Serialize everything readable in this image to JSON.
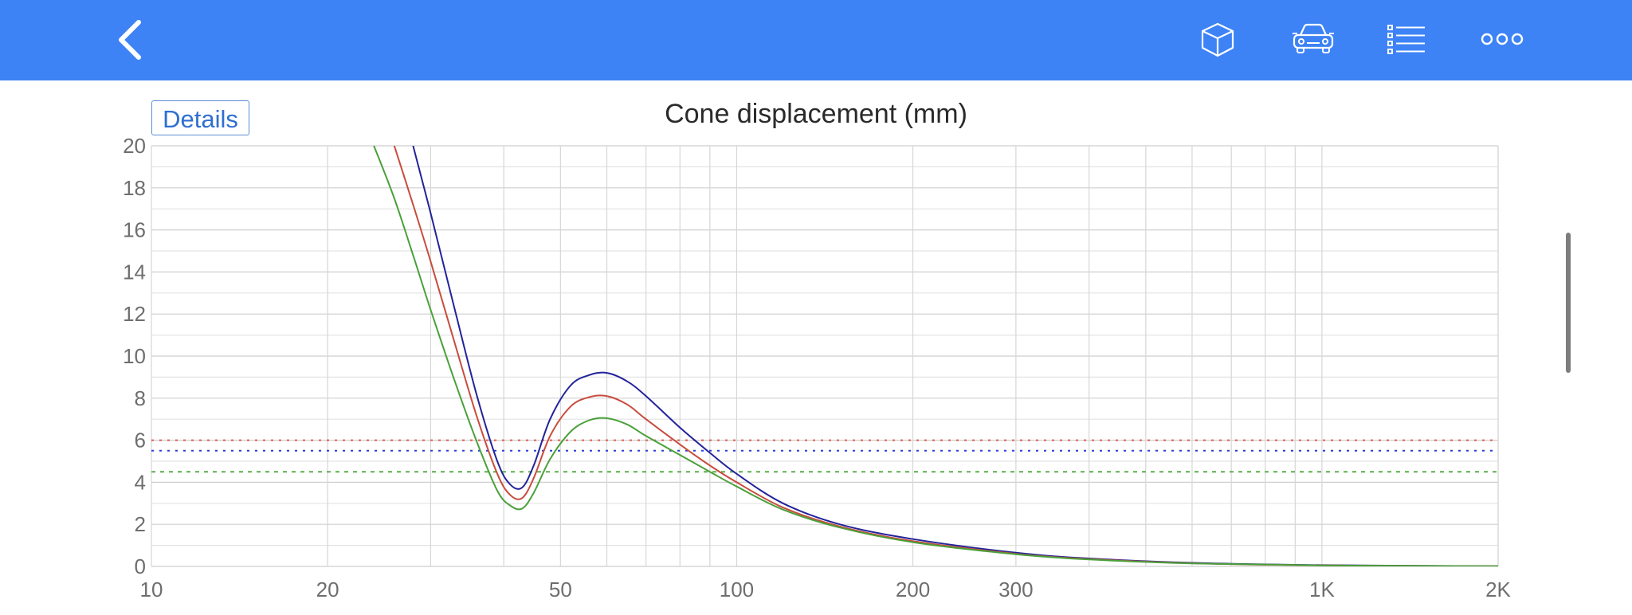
{
  "header": {
    "back_icon": "chevron-left-icon",
    "actions": [
      {
        "icon": "cube-icon"
      },
      {
        "icon": "car-icon"
      },
      {
        "icon": "list-icon"
      },
      {
        "icon": "more-icon"
      }
    ],
    "color": "#3d83f5"
  },
  "details_label": "Details",
  "chart_data": {
    "type": "line",
    "title": "Cone displacement (mm)",
    "xscale": "log",
    "xlim": [
      10,
      2000
    ],
    "ylim": [
      0,
      20
    ],
    "x_ticks": [
      {
        "value": 10,
        "label": "10"
      },
      {
        "value": 20,
        "label": "20"
      },
      {
        "value": 50,
        "label": "50"
      },
      {
        "value": 100,
        "label": "100"
      },
      {
        "value": 200,
        "label": "200"
      },
      {
        "value": 300,
        "label": "300"
      },
      {
        "value": 1000,
        "label": "1K"
      },
      {
        "value": 2000,
        "label": "2K"
      }
    ],
    "y_ticks": [
      0,
      2,
      4,
      6,
      8,
      10,
      12,
      14,
      16,
      18,
      20
    ],
    "grid": true,
    "series": [
      {
        "color": "#23239b",
        "x": [
          28,
          30,
          33,
          36,
          39,
          41,
          43,
          45,
          48,
          52,
          56,
          60,
          65,
          70,
          80,
          90,
          100,
          120,
          150,
          200,
          300,
          400,
          600,
          1000,
          2000
        ],
        "y": [
          20.0,
          16.8,
          12.2,
          8.1,
          5.0,
          3.9,
          3.75,
          4.8,
          7.0,
          8.6,
          9.1,
          9.2,
          8.8,
          8.1,
          6.6,
          5.4,
          4.4,
          3.0,
          2.0,
          1.3,
          0.65,
          0.38,
          0.17,
          0.06,
          0.01
        ]
      },
      {
        "color": "#c84c3d",
        "x": [
          26,
          28,
          30,
          33,
          36,
          39,
          41,
          43,
          45,
          48,
          52,
          56,
          60,
          65,
          70,
          80,
          90,
          100,
          120,
          150,
          200,
          300,
          400,
          600,
          1000,
          2000
        ],
        "y": [
          20.0,
          17.2,
          14.5,
          10.6,
          7.1,
          4.4,
          3.4,
          3.25,
          4.2,
          6.2,
          7.6,
          8.05,
          8.1,
          7.7,
          7.0,
          5.8,
          4.8,
          4.0,
          2.8,
          1.9,
          1.2,
          0.6,
          0.35,
          0.15,
          0.05,
          0.01
        ]
      },
      {
        "color": "#4aa03a",
        "x": [
          24,
          26,
          28,
          30,
          33,
          36,
          39,
          41,
          43,
          45,
          48,
          52,
          56,
          60,
          65,
          70,
          80,
          90,
          100,
          120,
          150,
          200,
          300,
          400,
          600,
          1000,
          2000
        ],
        "y": [
          20.0,
          17.5,
          14.8,
          12.2,
          8.8,
          5.9,
          3.6,
          2.9,
          2.75,
          3.5,
          5.1,
          6.4,
          6.95,
          7.05,
          6.75,
          6.2,
          5.3,
          4.5,
          3.8,
          2.7,
          1.85,
          1.15,
          0.58,
          0.33,
          0.14,
          0.05,
          0.01
        ]
      }
    ],
    "reference_lines": [
      {
        "y": 6.0,
        "color": "#e05a4e",
        "style": "dotted"
      },
      {
        "y": 5.5,
        "color": "#2c3ed8",
        "style": "dotted"
      },
      {
        "y": 4.5,
        "color": "#59b04a",
        "style": "dashed"
      }
    ]
  }
}
